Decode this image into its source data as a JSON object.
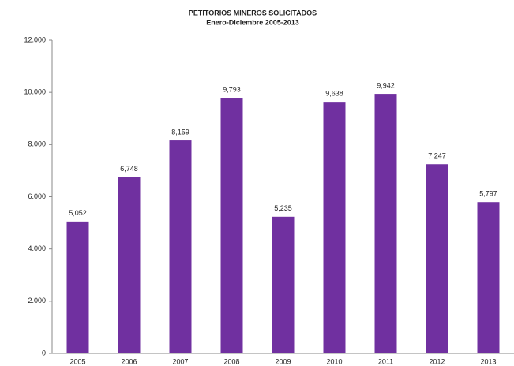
{
  "chart_data": {
    "type": "bar",
    "title": "PETITORIOS MINEROS SOLICITADOS",
    "subtitle": "Enero-Diciembre  2005-2013",
    "categories": [
      "2005",
      "2006",
      "2007",
      "2008",
      "2009",
      "2010",
      "2011",
      "2012",
      "2013"
    ],
    "values": [
      5052,
      6748,
      8159,
      9793,
      5235,
      9638,
      9942,
      7247,
      5797
    ],
    "value_labels": [
      "5,052",
      "6,748",
      "8,159",
      "9,793",
      "5,235",
      "9,638",
      "9,942",
      "7,247",
      "5,797"
    ],
    "color": "#7030a0",
    "ylim": [
      0,
      12000
    ],
    "yticks": [
      0,
      {
        "value": 2000,
        "label": "2.000"
      },
      {
        "value": 4000,
        "label": "4.000"
      },
      {
        "value": 6000,
        "label": "6.000"
      },
      {
        "value": 8000,
        "label": "8.000"
      },
      {
        "value": 10000,
        "label": "10.000"
      },
      {
        "value": 12000,
        "label": "12.000"
      }
    ],
    "grid": false
  }
}
